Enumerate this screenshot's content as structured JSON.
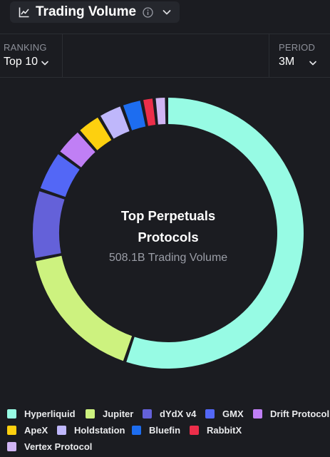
{
  "header": {
    "metric_title": "Trading Volume"
  },
  "filters": {
    "ranking": {
      "label": "RANKING",
      "value": "Top 10"
    },
    "period": {
      "label": "PERIOD",
      "value": "3M"
    }
  },
  "chart_data": {
    "type": "pie",
    "variant": "donut",
    "center_title_line1": "Top Perpetuals",
    "center_title_line2": "Protocols",
    "center_subtitle": "508.1B Trading Volume",
    "legend_position": "bottom",
    "categories": [
      "Hyperliquid",
      "Jupiter",
      "dYdX v4",
      "GMX",
      "Drift Protocol",
      "ApeX",
      "Holdstation",
      "Bluefin",
      "RabbitX",
      "Vertex Protocol"
    ],
    "values": [
      56.5,
      17.0,
      8.5,
      5.0,
      3.5,
      3.0,
      3.0,
      2.5,
      1.5,
      1.5
    ],
    "colors": [
      "#97fbe4",
      "#cdf27f",
      "#6461d9",
      "#5367f6",
      "#c07ff5",
      "#fdd00f",
      "#bfb7fb",
      "#1d6df0",
      "#ec2e4a",
      "#d1b5f4"
    ]
  }
}
